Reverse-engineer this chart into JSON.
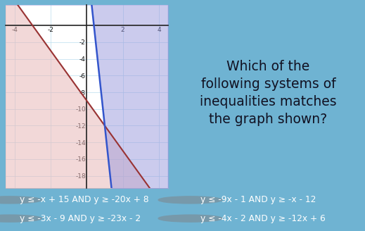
{
  "bg_color": "#6fb3d2",
  "graph_bg": "#ffffff",
  "graph_xlim": [
    -4.5,
    4.5
  ],
  "graph_ylim": [
    -19.5,
    2.5
  ],
  "graph_xticks": [
    -4,
    -2,
    2,
    4
  ],
  "graph_yticks": [
    -18,
    -16,
    -14,
    -12,
    -10,
    -8,
    -6,
    -4,
    -2
  ],
  "line1_slope": -3,
  "line1_intercept": -9,
  "line1_color": "#993333",
  "line2_slope": -20,
  "line2_intercept": 8,
  "line2_color": "#3355cc",
  "shade1_color": "#e8b8b8",
  "shade1_alpha": 0.55,
  "shade2_color": "#9999dd",
  "shade2_alpha": 0.5,
  "question_text": "Which of the\nfollowing systems of\ninequalities matches\nthe graph shown?",
  "question_color": "#111122",
  "question_fontsize": 13.5,
  "answers": [
    "y ≤ -x + 15 AND y ≥ -20x + 8",
    "y ≤ -9x - 1 AND y ≥ -x - 12",
    "y ≤ -3x - 9 AND y ≥ -23x - 2",
    "y ≤ -4x - 2 AND y ≥ -12x + 6"
  ],
  "answer_bg": "#a8c8de",
  "answer_text_color": "#ffffff",
  "answer_fontsize": 8.8,
  "circle_color": "#7799aa"
}
